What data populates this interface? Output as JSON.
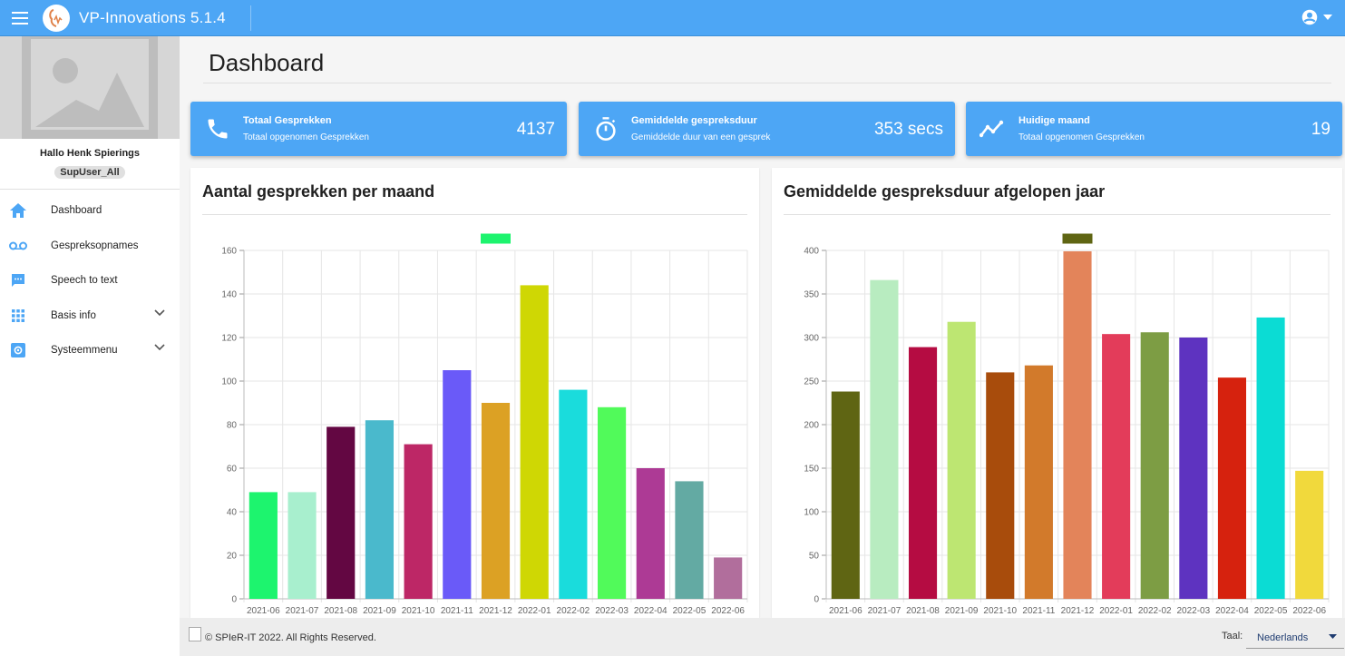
{
  "app": {
    "title": "VP-Innovations 5.1.4",
    "icons": {
      "menu": "menu-icon",
      "logo": "logo-icon",
      "account": "account-circle-icon",
      "dropdown": "caret-down-icon"
    }
  },
  "sidebar": {
    "greeting": "Hallo Henk Spierings",
    "role": "SupUser_All",
    "items": [
      {
        "label": "Dashboard",
        "icon": "home-icon",
        "has_children": false
      },
      {
        "label": "Gespreksopnames",
        "icon": "voicemail-icon",
        "has_children": false
      },
      {
        "label": "Speech to text",
        "icon": "chat-icon",
        "has_children": false
      },
      {
        "label": "Basis info",
        "icon": "grid-icon",
        "has_children": true
      },
      {
        "label": "Systeemmenu",
        "icon": "settings-icon",
        "has_children": true
      }
    ]
  },
  "main": {
    "page_title": "Dashboard",
    "stats": [
      {
        "title": "Totaal Gesprekken",
        "subtitle": "Totaal opgenomen Gesprekken",
        "value": "4137",
        "icon": "phone-icon"
      },
      {
        "title": "Gemiddelde gespreksduur",
        "subtitle": "Gemiddelde duur van een gesprek",
        "value": "353 secs",
        "icon": "timer-icon"
      },
      {
        "title": "Huidige maand",
        "subtitle": "Totaal opgenomen Gesprekken",
        "value": "19",
        "icon": "trending-icon"
      }
    ]
  },
  "chart_data": [
    {
      "type": "bar",
      "title": "Aantal gesprekken per maand",
      "categories": [
        "2021-06",
        "2021-07",
        "2021-08",
        "2021-09",
        "2021-10",
        "2021-11",
        "2021-12",
        "2022-01",
        "2022-02",
        "2022-03",
        "2022-04",
        "2022-05",
        "2022-06"
      ],
      "values": [
        49,
        49,
        79,
        82,
        71,
        105,
        90,
        144,
        96,
        88,
        60,
        54,
        19
      ],
      "colors": [
        "#1df46e",
        "#a8efce",
        "#630742",
        "#4ab9cc",
        "#bd2766",
        "#6a5af8",
        "#dca124",
        "#cfd704",
        "#1adcdc",
        "#51fa5a",
        "#ad3a95",
        "#63aaa3",
        "#b16e9c"
      ],
      "legend_color": "#1df46e",
      "ylim": [
        0,
        160
      ],
      "yticks": [
        0,
        20,
        40,
        60,
        80,
        100,
        120,
        140,
        160
      ],
      "grid": true,
      "legend": "top"
    },
    {
      "type": "bar",
      "title": "Gemiddelde gespreksduur afgelopen jaar",
      "categories": [
        "2021-06",
        "2021-07",
        "2021-08",
        "2021-09",
        "2021-10",
        "2021-11",
        "2021-12",
        "2022-01",
        "2022-02",
        "2022-03",
        "2022-04",
        "2022-05",
        "2022-06"
      ],
      "values": [
        238,
        366,
        289,
        318,
        260,
        268,
        399,
        304,
        306,
        300,
        254,
        323,
        147
      ],
      "colors": [
        "#5f6513",
        "#b8ecc0",
        "#b50c42",
        "#bde672",
        "#a84c0c",
        "#d27a2b",
        "#e3845a",
        "#e33c5a",
        "#7d9d44",
        "#5e33c0",
        "#d6220e",
        "#0bdcd4",
        "#f1d93c"
      ],
      "legend_color": "#5f6513",
      "ylim": [
        0,
        400
      ],
      "yticks": [
        0,
        50,
        100,
        150,
        200,
        250,
        300,
        350,
        400
      ],
      "grid": true,
      "legend": "top"
    }
  ],
  "footer": {
    "copyright": "© SPIeR-IT 2022. All Rights Reserved.",
    "language_label": "Taal:",
    "language_value": "Nederlands"
  }
}
